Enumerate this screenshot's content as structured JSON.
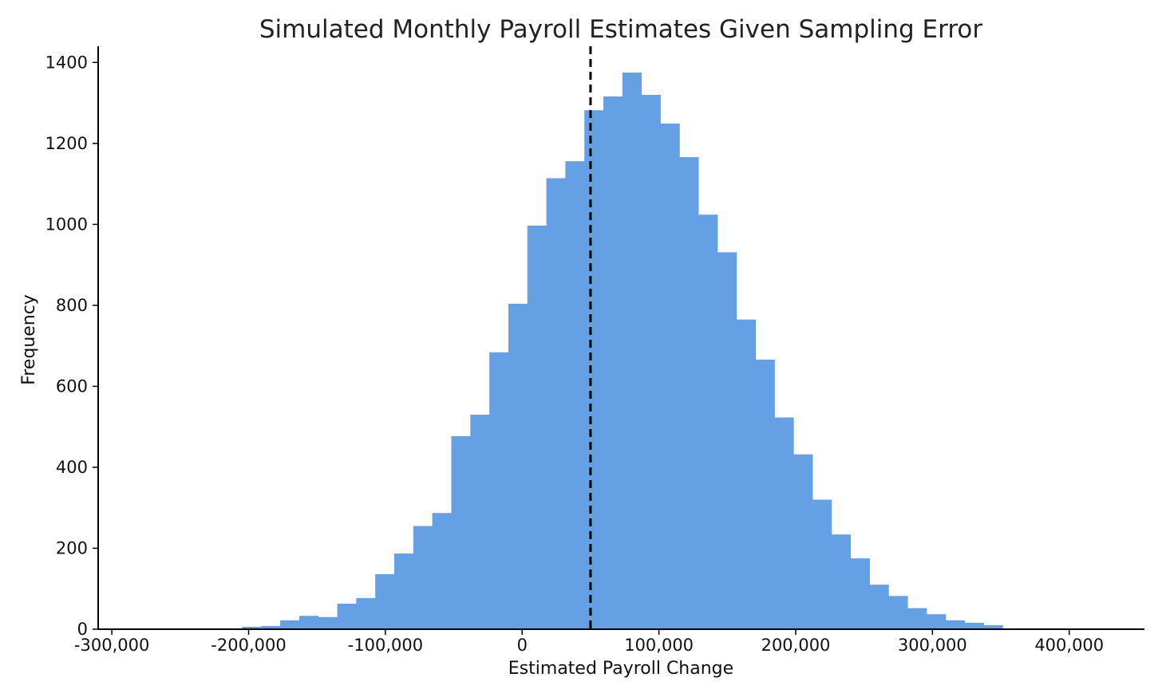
{
  "chart_data": {
    "type": "histogram",
    "title": "Simulated Monthly Payroll Estimates Given Sampling Error",
    "xlabel": "Estimated Payroll Change",
    "ylabel": "Frequency",
    "xlim": [
      -310000,
      455000
    ],
    "ylim": [
      0,
      1440
    ],
    "x_ticks": [
      {
        "value": -300000,
        "label": "-300,000"
      },
      {
        "value": -200000,
        "label": "-200,000"
      },
      {
        "value": -100000,
        "label": "-100,000"
      },
      {
        "value": 0,
        "label": "0"
      },
      {
        "value": 100000,
        "label": "100,000"
      },
      {
        "value": 200000,
        "label": "200,000"
      },
      {
        "value": 300000,
        "label": "300,000"
      },
      {
        "value": 400000,
        "label": "400,000"
      }
    ],
    "y_ticks": [
      {
        "value": 0,
        "label": "0"
      },
      {
        "value": 200,
        "label": "200"
      },
      {
        "value": 400,
        "label": "400"
      },
      {
        "value": 600,
        "label": "600"
      },
      {
        "value": 800,
        "label": "800"
      },
      {
        "value": 1000,
        "label": "1000"
      },
      {
        "value": 1200,
        "label": "1200"
      },
      {
        "value": 1400,
        "label": "1400"
      }
    ],
    "bin_start": -302000,
    "bin_width": 13900,
    "counts": [
      0,
      0,
      0,
      1,
      1,
      0,
      0,
      6,
      8,
      22,
      33,
      30,
      63,
      77,
      136,
      187,
      255,
      287,
      477,
      530,
      684,
      804,
      997,
      1114,
      1156,
      1282,
      1316,
      1375,
      1320,
      1249,
      1166,
      1024,
      931,
      765,
      666,
      523,
      432,
      320,
      234,
      175,
      110,
      82,
      52,
      37,
      22,
      16,
      10,
      2,
      0,
      0,
      0,
      1,
      1,
      0,
      0
    ],
    "reference_line": {
      "x": 50000,
      "style": "dashed"
    },
    "grid": false,
    "color": "#659fe4"
  }
}
